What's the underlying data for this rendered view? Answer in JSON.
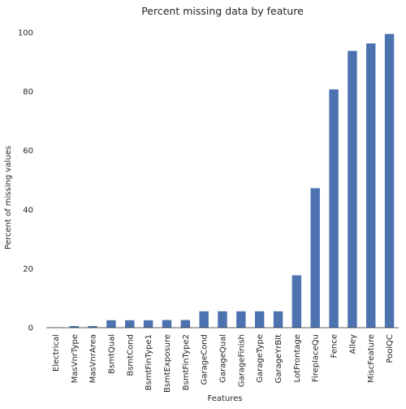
{
  "chart_data": {
    "type": "bar",
    "title": "Percent missing data by feature",
    "xlabel": "Features",
    "ylabel": "Percent of missing values",
    "categories": [
      "Electrical",
      "MasVnrType",
      "MasVnrArea",
      "BsmtQual",
      "BsmtCond",
      "BsmtFinType1",
      "BsmtExposure",
      "BsmtFinType2",
      "GarageCond",
      "GarageQual",
      "GarageFinish",
      "GarageType",
      "GarageYrBlt",
      "LotFrontage",
      "FireplaceQu",
      "Fence",
      "Alley",
      "MiscFeature",
      "PoolQC"
    ],
    "values": [
      0.07,
      0.55,
      0.55,
      2.53,
      2.53,
      2.53,
      2.6,
      2.6,
      5.55,
      5.55,
      5.55,
      5.55,
      5.55,
      17.74,
      47.26,
      80.75,
      93.77,
      96.3,
      99.52
    ],
    "yticks": [
      0,
      20,
      40,
      60,
      80,
      100
    ],
    "ylim": [
      0,
      100
    ],
    "grid": false,
    "legend": "none",
    "bar_color": "#4c72b0"
  }
}
